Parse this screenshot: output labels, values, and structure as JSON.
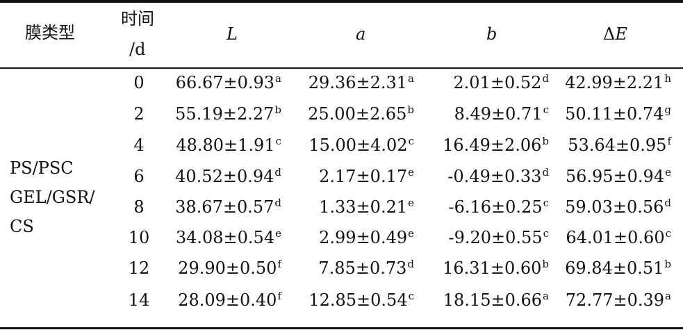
{
  "headers": {
    "film_type": "膜类型",
    "time_line1": "时间",
    "time_line2": "/d",
    "L": "L",
    "a": "a",
    "b": "b",
    "dE_delta": "Δ",
    "dE_E": "E"
  },
  "film_type_lines": [
    "PS/PSC",
    "GEL/GSR/",
    "CS"
  ],
  "rows": [
    {
      "time": "0",
      "L": "66.67±0.93",
      "L_sup": "a",
      "a": "29.36±2.31",
      "a_sup": "a",
      "b": "2.01±0.52",
      "b_sup": "d",
      "dE": "42.99±2.21",
      "dE_sup": "h"
    },
    {
      "time": "2",
      "L": "55.19±2.27",
      "L_sup": "b",
      "a": "25.00±2.65",
      "a_sup": "b",
      "b": "8.49±0.71",
      "b_sup": "c",
      "dE": "50.11±0.74",
      "dE_sup": "g"
    },
    {
      "time": "4",
      "L": "48.80±1.91",
      "L_sup": "c",
      "a": "15.00±4.02",
      "a_sup": "c",
      "b": "16.49±2.06",
      "b_sup": "b",
      "dE": "53.64±0.95",
      "dE_sup": "f"
    },
    {
      "time": "6",
      "L": "40.52±0.94",
      "L_sup": "d",
      "a": "2.17±0.17",
      "a_sup": "e",
      "b": "-0.49±0.33",
      "b_sup": "d",
      "dE": "56.95±0.94",
      "dE_sup": "e"
    },
    {
      "time": "8",
      "L": "38.67±0.57",
      "L_sup": "d",
      "a": "1.33±0.21",
      "a_sup": "e",
      "b": "-6.16±0.25",
      "b_sup": "c",
      "dE": "59.03±0.56",
      "dE_sup": "d"
    },
    {
      "time": "10",
      "L": "34.08±0.54",
      "L_sup": "e",
      "a": "2.99±0.49",
      "a_sup": "e",
      "b": "-9.20±0.55",
      "b_sup": "c",
      "dE": "64.01±0.60",
      "dE_sup": "c"
    },
    {
      "time": "12",
      "L": "29.90±0.50",
      "L_sup": "f",
      "a": "7.85±0.73",
      "a_sup": "d",
      "b": "16.31±0.60",
      "b_sup": "b",
      "dE": "69.84±0.51",
      "dE_sup": "b"
    },
    {
      "time": "14",
      "L": "28.09±0.40",
      "L_sup": "f",
      "a": "12.85±0.54",
      "a_sup": "c",
      "b": "18.15±0.66",
      "b_sup": "a",
      "dE": "72.77±0.39",
      "dE_sup": "a"
    }
  ]
}
